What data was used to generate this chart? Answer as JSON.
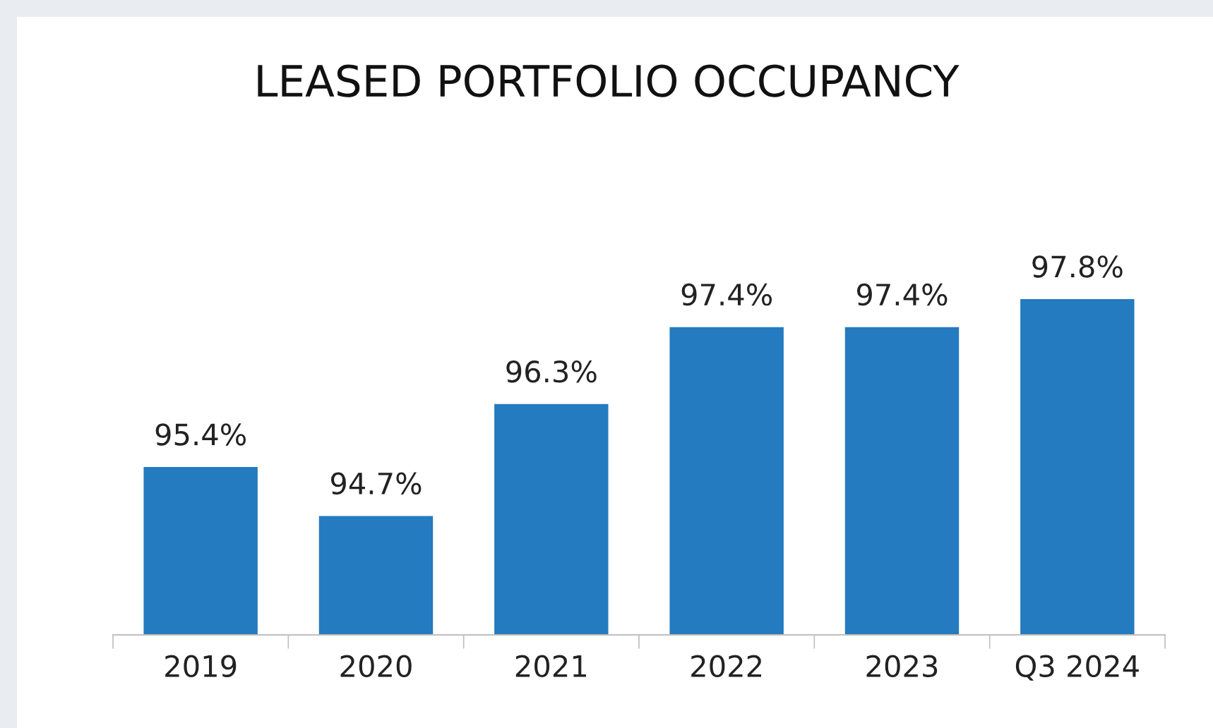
{
  "chart_data": {
    "type": "bar",
    "title": "LEASED PORTFOLIO OCCUPANCY",
    "categories": [
      "2019",
      "2020",
      "2021",
      "2022",
      "2023",
      "Q3 2024"
    ],
    "values": [
      95.4,
      94.7,
      96.3,
      97.4,
      97.4,
      97.8
    ],
    "value_labels": [
      "95.4%",
      "94.7%",
      "96.3%",
      "97.4%",
      "97.4%",
      "97.8%"
    ],
    "color": "#247bbf",
    "ylim": [
      93,
      97.8
    ],
    "tick_labels": "x",
    "grid": false,
    "legend": false
  }
}
